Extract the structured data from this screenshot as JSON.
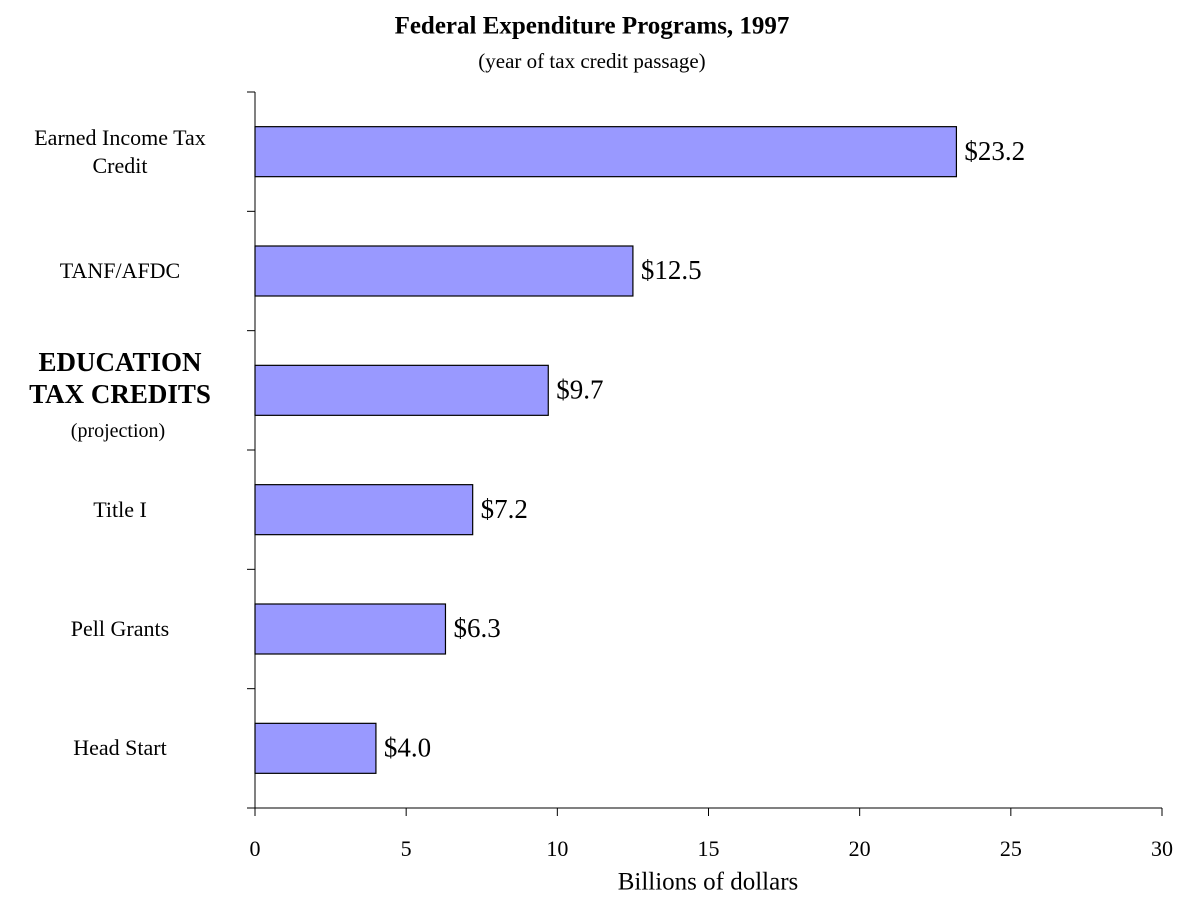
{
  "chart_data": {
    "type": "barh",
    "title": "Federal Expenditure Programs, 1997",
    "subtitle": "(year of tax credit passage)",
    "categories": [
      "Earned Income Tax\nCredit",
      "TANF/AFDC",
      "EDUCATION\nTAX CREDITS",
      "Title I",
      "Pell Grants",
      "Head Start"
    ],
    "values": [
      23.2,
      12.5,
      9.7,
      7.2,
      6.3,
      4.0
    ],
    "value_labels": [
      "$23.2",
      "$12.5",
      "$9.7",
      "$7.2",
      "$6.3",
      "$4.0"
    ],
    "highlight_index": 2,
    "highlight_note": "(projection)",
    "color": "#9999ff",
    "xlabel": "Billions of dollars",
    "xlim": [
      0,
      30
    ],
    "xticks": [
      0,
      5,
      10,
      15,
      20,
      25,
      30
    ]
  }
}
